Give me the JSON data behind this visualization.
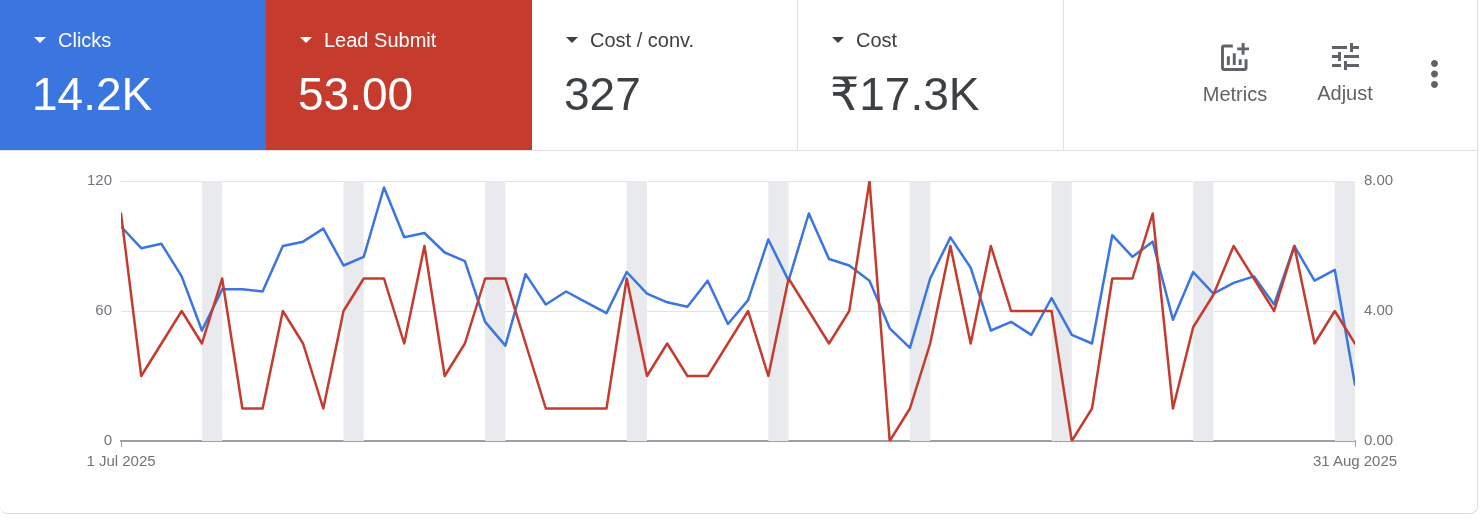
{
  "chart_data": {
    "type": "line",
    "x": [
      "2025-07-01",
      "2025-07-02",
      "2025-07-03",
      "2025-07-04",
      "2025-07-05",
      "2025-07-06",
      "2025-07-07",
      "2025-07-08",
      "2025-07-09",
      "2025-07-10",
      "2025-07-11",
      "2025-07-12",
      "2025-07-13",
      "2025-07-14",
      "2025-07-15",
      "2025-07-16",
      "2025-07-17",
      "2025-07-18",
      "2025-07-19",
      "2025-07-20",
      "2025-07-21",
      "2025-07-22",
      "2025-07-23",
      "2025-07-24",
      "2025-07-25",
      "2025-07-26",
      "2025-07-27",
      "2025-07-28",
      "2025-07-29",
      "2025-07-30",
      "2025-07-31",
      "2025-08-01",
      "2025-08-02",
      "2025-08-03",
      "2025-08-04",
      "2025-08-05",
      "2025-08-06",
      "2025-08-07",
      "2025-08-08",
      "2025-08-09",
      "2025-08-10",
      "2025-08-11",
      "2025-08-12",
      "2025-08-13",
      "2025-08-14",
      "2025-08-15",
      "2025-08-16",
      "2025-08-17",
      "2025-08-18",
      "2025-08-19",
      "2025-08-20",
      "2025-08-21",
      "2025-08-22",
      "2025-08-23",
      "2025-08-24",
      "2025-08-25",
      "2025-08-26",
      "2025-08-27",
      "2025-08-28",
      "2025-08-29",
      "2025-08-30",
      "2025-08-31"
    ],
    "series": [
      {
        "color": "#3a75e0",
        "values": [
          99,
          89,
          91,
          76,
          51,
          70,
          70,
          69,
          90,
          92,
          98,
          81,
          85,
          117,
          94,
          96,
          87,
          83,
          55,
          44,
          77,
          63,
          69,
          64,
          59,
          78,
          68,
          64,
          62,
          74,
          54,
          65,
          93,
          74,
          105,
          84,
          81,
          74,
          52,
          43,
          75,
          94,
          80,
          51,
          55,
          49,
          66,
          49,
          45,
          95,
          85,
          92,
          56,
          78,
          68,
          73,
          76,
          63,
          90,
          74,
          79,
          26
        ]
      },
      {
        "color": "#c53b2d",
        "axis": "y2",
        "values": [
          7,
          2,
          3,
          4,
          3,
          5,
          1,
          1,
          4,
          3,
          1,
          4,
          5,
          5,
          3,
          6,
          2,
          3,
          5,
          5,
          3,
          1,
          1,
          1,
          1,
          5,
          2,
          3,
          2,
          2,
          3,
          4,
          2,
          5,
          4,
          3,
          4,
          8,
          0,
          1,
          3,
          6,
          3,
          6,
          4,
          4,
          4,
          0,
          1,
          5,
          5,
          7,
          1,
          3.5,
          4.5,
          6,
          5,
          4,
          6,
          3,
          4,
          3
        ]
      }
    ],
    "xlim": [
      "2025-07-01",
      "2025-08-31"
    ],
    "xticks": [
      {
        "value": "2025-07-01",
        "label": "1 Jul 2025"
      },
      {
        "value": "2025-08-31",
        "label": "31 Aug 2025"
      }
    ],
    "ylim": [
      0,
      120
    ],
    "yticks": [
      0,
      60,
      120
    ],
    "y2lim": [
      0,
      8
    ],
    "y2ticks": [
      {
        "value": 0,
        "label": "0.00"
      },
      {
        "value": 4,
        "label": "4.00"
      },
      {
        "value": 8,
        "label": "8.00"
      }
    ],
    "bands": [
      {
        "axis": "x",
        "from": "2025-07-05",
        "to": "2025-07-06",
        "color": "#e8eaed"
      },
      {
        "axis": "x",
        "from": "2025-07-12",
        "to": "2025-07-13",
        "color": "#e8eaed"
      },
      {
        "axis": "x",
        "from": "2025-07-19",
        "to": "2025-07-20",
        "color": "#e8eaed"
      },
      {
        "axis": "x",
        "from": "2025-07-26",
        "to": "2025-07-27",
        "color": "#e8eaed"
      },
      {
        "axis": "x",
        "from": "2025-08-02",
        "to": "2025-08-03",
        "color": "#e8eaed"
      },
      {
        "axis": "x",
        "from": "2025-08-09",
        "to": "2025-08-10",
        "color": "#e8eaed"
      },
      {
        "axis": "x",
        "from": "2025-08-16",
        "to": "2025-08-17",
        "color": "#e8eaed"
      },
      {
        "axis": "x",
        "from": "2025-08-23",
        "to": "2025-08-24",
        "color": "#e8eaed"
      },
      {
        "axis": "x",
        "from": "2025-08-30",
        "to": "2025-08-31",
        "color": "#e8eaed"
      }
    ],
    "grid": "y",
    "annotations": [
      "Clicks",
      "14.2K",
      "Lead Submit",
      "53.00",
      "Cost / conv.",
      "327",
      "Cost",
      "₹17.3K",
      "Metrics",
      "Adjust"
    ]
  }
}
